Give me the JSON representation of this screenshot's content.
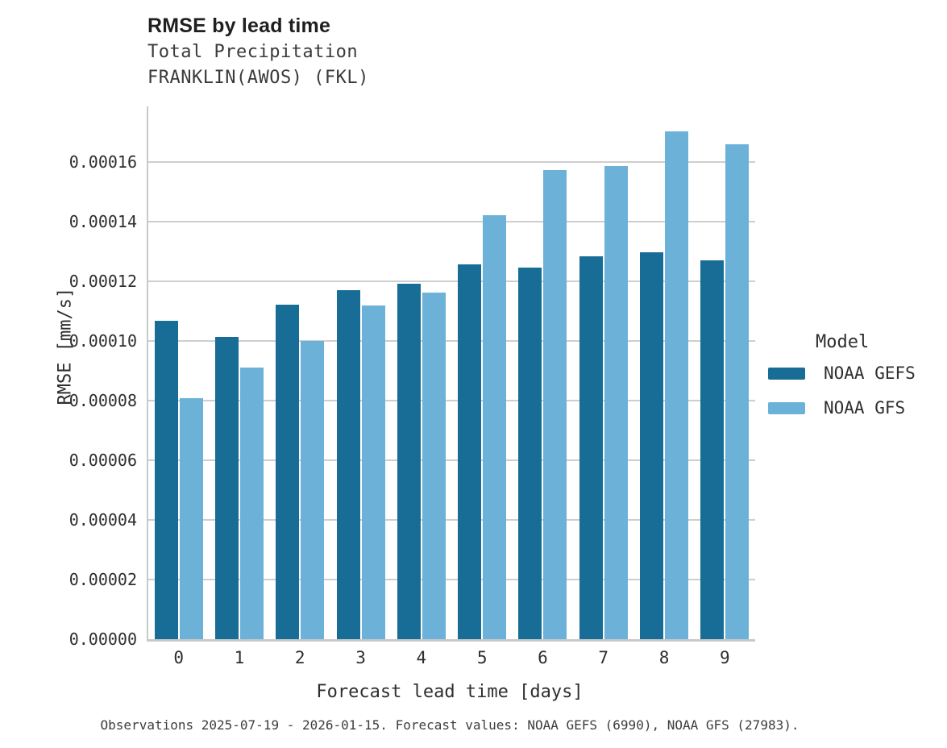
{
  "chart_data": {
    "type": "bar",
    "title": "RMSE by lead time",
    "subtitle": [
      "Total Precipitation",
      "FRANKLIN(AWOS) (FKL)"
    ],
    "xlabel": "Forecast lead time [days]",
    "ylabel": "RMSE [mm/s]",
    "categories": [
      "0",
      "1",
      "2",
      "3",
      "4",
      "5",
      "6",
      "7",
      "8",
      "9"
    ],
    "series": [
      {
        "name": "NOAA GEFS",
        "color": "#176d96",
        "values": [
          0.0001067,
          0.0001015,
          0.0001121,
          0.000117,
          0.0001193,
          0.0001256,
          0.0001246,
          0.0001283,
          0.0001297,
          0.0001271
        ]
      },
      {
        "name": "NOAA GFS",
        "color": "#6cb1d8",
        "values": [
          8.08e-05,
          9.1e-05,
          0.0001,
          0.000112,
          0.0001163,
          0.0001422,
          0.0001573,
          0.0001586,
          0.0001704,
          0.000166
        ]
      }
    ],
    "ylim": [
      0,
      0.0001787
    ],
    "yticks": {
      "values": [
        0,
        2e-05,
        4e-05,
        6e-05,
        8e-05,
        0.0001,
        0.00012,
        0.00014,
        0.00016
      ],
      "labels": [
        "0.00000",
        "0.00002",
        "0.00004",
        "0.00006",
        "0.00008",
        "0.00010",
        "0.00012",
        "0.00014",
        "0.00016"
      ]
    },
    "grid": "horizontal",
    "legend": {
      "title": "Model",
      "position": "right"
    },
    "caption": "Observations 2025-07-19 - 2026-01-15. Forecast values: NOAA GEFS (6990), NOAA GFS (27983)."
  },
  "colors": {
    "gefs_bar": "#176d96",
    "gfs_bar": "#6cb1d8",
    "gridline": "#cecece",
    "spine": "#c9c9c9",
    "title_text": "#1f1f1f",
    "body_text": "#2e2e2e",
    "caption_text": "#3d3d3d",
    "background": "#ffffff"
  }
}
